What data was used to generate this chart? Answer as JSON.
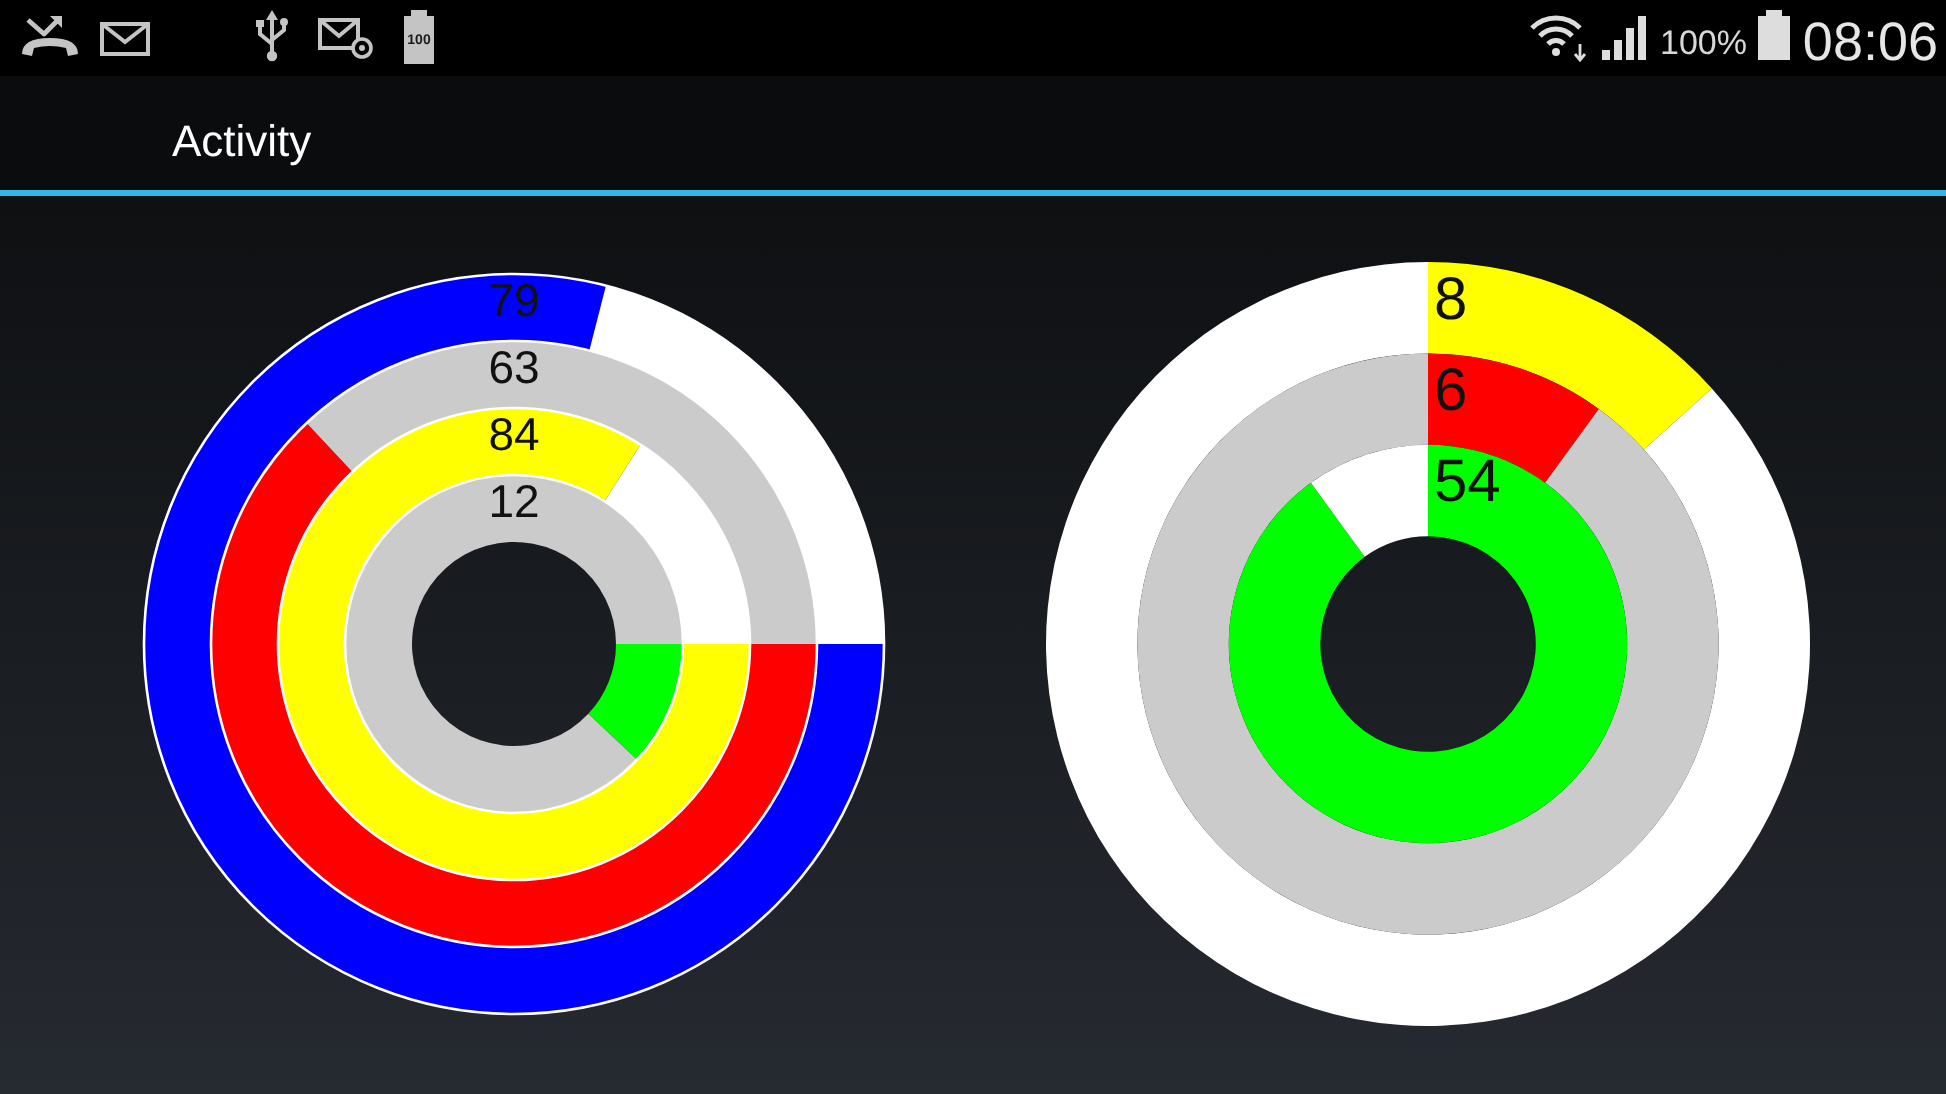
{
  "chart_data": [
    {
      "type": "other",
      "title": "Activity",
      "annotations": [
        "100",
        "100%",
        "08:06"
      ]
    },
    {
      "type": "donut",
      "categories": [
        null,
        null
      ],
      "values": [
        79,
        21
      ],
      "colors": [
        "#0000ff",
        "#ffffff"
      ],
      "value_labels": [
        "79",
        null
      ]
    },
    {
      "type": "donut",
      "categories": [
        null,
        null
      ],
      "values": [
        63,
        37
      ],
      "colors": [
        "#ff0000",
        "#cbcbcb"
      ],
      "annotations": [
        "63"
      ]
    },
    {
      "type": "donut",
      "categories": [
        null,
        null
      ],
      "values": [
        84,
        16
      ],
      "colors": [
        "#ffff00",
        "#ffffff"
      ],
      "value_labels": [
        "84",
        null
      ]
    },
    {
      "type": "donut",
      "categories": [
        null,
        null
      ],
      "values": [
        12,
        88
      ],
      "colors": [
        "#00ff00",
        "#cbcbcb"
      ],
      "annotations": [
        "12"
      ]
    },
    {
      "type": "donut",
      "categories": [
        null,
        null
      ],
      "values": [
        8,
        52
      ],
      "colors": [
        "#ffff00",
        "#ffffff"
      ],
      "value_labels": [
        "8",
        null
      ]
    },
    {
      "type": "donut",
      "categories": [
        null,
        null
      ],
      "values": [
        6,
        54
      ],
      "colors": [
        "#ff0000",
        "#cbcbcb"
      ],
      "value_labels": [
        "6",
        null
      ]
    },
    {
      "type": "donut",
      "categories": [
        null,
        null
      ],
      "values": [
        54,
        6
      ],
      "colors": [
        "#00ff00",
        "#ffffff"
      ],
      "value_labels": [
        "54",
        null
      ]
    }
  ]
}
